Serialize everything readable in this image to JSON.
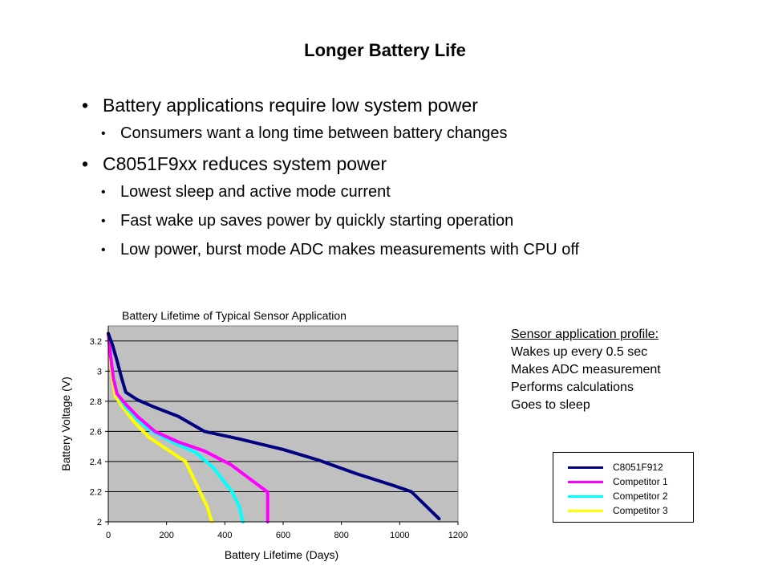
{
  "slide": {
    "title": "Longer Battery Life",
    "bullets": [
      {
        "text": "Battery applications require low system power",
        "sub": [
          "Consumers want a long time between battery changes"
        ]
      },
      {
        "text": "C8051F9xx reduces system power",
        "sub": [
          "Lowest sleep and active mode current",
          "Fast wake up saves power by quickly starting operation",
          "Low power, burst mode ADC makes measurements with CPU off"
        ]
      }
    ]
  },
  "profile": {
    "heading": "Sensor application profile:",
    "lines": [
      "Wakes up every 0.5 sec",
      "Makes ADC measurement",
      "Performs calculations",
      "Goes to sleep"
    ]
  },
  "chart_data": {
    "type": "line",
    "title": "Battery  Lifetime  of  Typical  Sensor  Application",
    "xlabel": "Battery  Lifetime  (Days)",
    "ylabel": "Battery  Voltage  (V)",
    "xlim": [
      0,
      1200
    ],
    "ylim": [
      2,
      3.3
    ],
    "xticks": [
      0,
      200,
      400,
      600,
      800,
      1000,
      1200
    ],
    "yticks": [
      2,
      2.2,
      2.4,
      2.6,
      2.8,
      3,
      3.2
    ],
    "ytick_labels": [
      "2",
      "2.2",
      "2.4",
      "2.6",
      "2.8",
      "3",
      "3.2"
    ],
    "grid": "horizontal",
    "plot_background": "#c0c0c0",
    "legend_position": "bottom-right",
    "series": [
      {
        "name": "C8051F912",
        "color": "#000080",
        "x": [
          0,
          15,
          30,
          45,
          60,
          100,
          160,
          240,
          330,
          450,
          600,
          720,
          850,
          980,
          1040,
          1135
        ],
        "y": [
          3.25,
          3.17,
          3.07,
          2.96,
          2.86,
          2.81,
          2.76,
          2.7,
          2.6,
          2.55,
          2.48,
          2.41,
          2.32,
          2.24,
          2.2,
          2.02
        ]
      },
      {
        "name": "Competitor 1",
        "color": "#ff00ff",
        "x": [
          0,
          8,
          18,
          30,
          60,
          100,
          160,
          240,
          330,
          420,
          545,
          547,
          547
        ],
        "y": [
          3.25,
          3.1,
          2.95,
          2.85,
          2.78,
          2.7,
          2.6,
          2.53,
          2.47,
          2.38,
          2.2,
          2.2,
          2.0
        ]
      },
      {
        "name": "Competitor 2",
        "color": "#00ffff",
        "x": [
          0,
          8,
          18,
          30,
          60,
          100,
          150,
          220,
          300,
          360,
          425,
          450,
          462
        ],
        "y": [
          3.25,
          3.1,
          2.95,
          2.85,
          2.76,
          2.68,
          2.6,
          2.53,
          2.46,
          2.36,
          2.2,
          2.1,
          2.0
        ]
      },
      {
        "name": "Competitor 3",
        "color": "#ffff00",
        "x": [
          0,
          6,
          14,
          25,
          50,
          90,
          140,
          210,
          265,
          315,
          340,
          355
        ],
        "y": [
          3.25,
          3.1,
          2.95,
          2.83,
          2.76,
          2.66,
          2.56,
          2.47,
          2.4,
          2.2,
          2.1,
          2.0
        ]
      }
    ]
  }
}
